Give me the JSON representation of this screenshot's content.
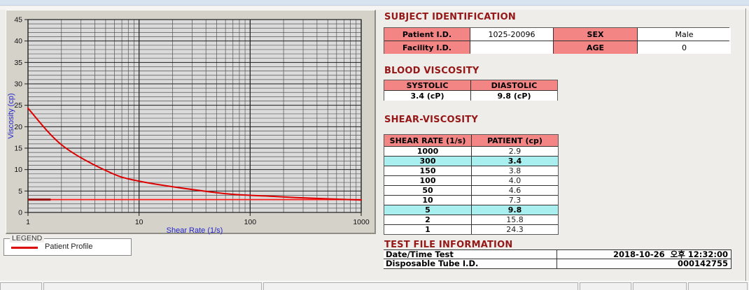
{
  "chart": {
    "legend": {
      "group_label": "LEGEND",
      "series_label": "Patient Profile"
    }
  },
  "chart_data": {
    "type": "line",
    "title": "",
    "xlabel": "Shear Rate (1/s)",
    "ylabel": "Viscosity (cp)",
    "x_scale": "log",
    "xlim": [
      1,
      1000
    ],
    "ylim": [
      0,
      45
    ],
    "x_ticks": [
      1,
      10,
      100,
      1000
    ],
    "y_ticks": [
      0,
      5,
      10,
      15,
      20,
      25,
      30,
      35,
      40,
      45
    ],
    "y_minor_step": 1,
    "grid": "major+minor",
    "legend_position": "below-left",
    "series": [
      {
        "name": "Patient Profile",
        "color": "#dd0000",
        "x": [
          1,
          2,
          5,
          10,
          50,
          100,
          150,
          300,
          1000
        ],
        "y": [
          24.3,
          15.8,
          9.8,
          7.3,
          4.6,
          4.0,
          3.8,
          3.4,
          2.9
        ]
      }
    ],
    "annotations": [
      {
        "type": "hline",
        "y": 3.0,
        "x1": 1,
        "x2": 1000,
        "color": "#ff1a1a",
        "width": 1.8
      },
      {
        "type": "hline",
        "y": 3.0,
        "x1": 1,
        "x2": 1.6,
        "color": "#991111",
        "width": 3
      }
    ]
  },
  "subject_identification": {
    "title": "SUBJECT IDENTIFICATION",
    "rows": [
      {
        "label1": "Patient I.D.",
        "value1": "1025-20096",
        "label2": "SEX",
        "value2": "Male"
      },
      {
        "label1": "Facility I.D.",
        "value1": "",
        "label2": "AGE",
        "value2": "0"
      }
    ]
  },
  "blood_viscosity": {
    "title": "BLOOD VISCOSITY",
    "headers": [
      "SYSTOLIC",
      "DIASTOLIC"
    ],
    "values": [
      "3.4 (cP)",
      "9.8 (cP)"
    ]
  },
  "shear_viscosity": {
    "title": "SHEAR-VISCOSITY",
    "headers": [
      "SHEAR RATE (1/s)",
      "PATIENT (cp)"
    ],
    "highlight_color": "#a9efef",
    "header_color": "#f38585",
    "rows": [
      {
        "shear_rate": "1000",
        "patient": "2.9",
        "highlight": false
      },
      {
        "shear_rate": "300",
        "patient": "3.4",
        "highlight": true
      },
      {
        "shear_rate": "150",
        "patient": "3.8",
        "highlight": false
      },
      {
        "shear_rate": "100",
        "patient": "4.0",
        "highlight": false
      },
      {
        "shear_rate": "50",
        "patient": "4.6",
        "highlight": false
      },
      {
        "shear_rate": "10",
        "patient": "7.3",
        "highlight": false
      },
      {
        "shear_rate": "5",
        "patient": "9.8",
        "highlight": true
      },
      {
        "shear_rate": "2",
        "patient": "15.8",
        "highlight": false
      },
      {
        "shear_rate": "1",
        "patient": "24.3",
        "highlight": false
      }
    ]
  },
  "test_file_information": {
    "title": "TEST FILE INFORMATION",
    "rows": [
      {
        "label": "Date/Time Test",
        "value": "2018-10-26  오후 12:32:00"
      },
      {
        "label": "Disposable Tube I.D.",
        "value": "000142755"
      }
    ]
  },
  "colors": {
    "section_title": "#951717",
    "header_pink": "#f38585",
    "highlight_cyan": "#a9efef",
    "curve_red": "#dd0000",
    "axis_title_blue": "#2626cc",
    "top_bar_blue": "#d8e3f0"
  }
}
